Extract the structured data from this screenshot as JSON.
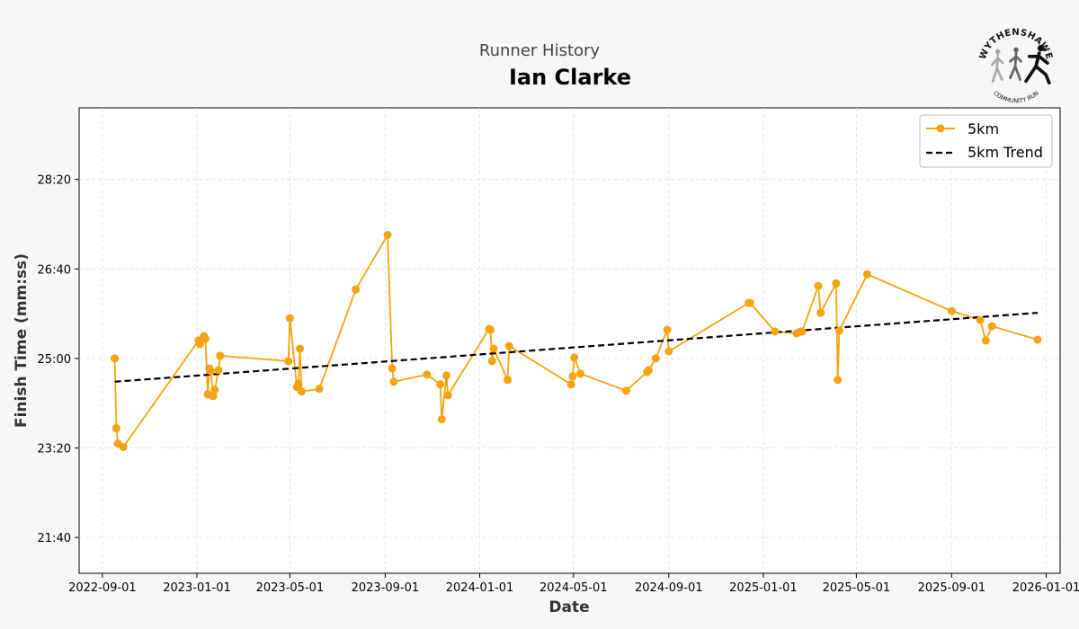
{
  "page": {
    "subtitle": "Runner History",
    "title": "Ian Clarke"
  },
  "logo": {
    "top_text": "WYTHENSHAWE",
    "bottom_text": "COMMUNITY RUN"
  },
  "colors": {
    "series": "#f5a30f",
    "trend": "#000000",
    "background": "#f7f7f7",
    "plot_background": "#ffffff",
    "grid": "#dddddd"
  },
  "chart_data": {
    "type": "line",
    "title": "Ian Clarke",
    "subtitle": "Runner History",
    "xlabel": "Date",
    "ylabel": "Finish Time (mm:ss)",
    "x_type": "date",
    "y_unit": "seconds",
    "xlim": [
      "2022-08-02",
      "2026-01-19"
    ],
    "ylim": [
      1260,
      1780
    ],
    "x_ticks": [
      "2022-09-01",
      "2023-01-01",
      "2023-05-01",
      "2023-09-01",
      "2024-01-01",
      "2024-05-01",
      "2024-09-01",
      "2025-01-01",
      "2025-05-01",
      "2025-09-01",
      "2026-01-01"
    ],
    "y_ticks": [
      1300,
      1400,
      1500,
      1600,
      1700
    ],
    "y_tick_labels": [
      "21:40",
      "23:20",
      "25:00",
      "26:40",
      "28:20"
    ],
    "grid": true,
    "legend": "top-right",
    "series": [
      {
        "name": "5km",
        "style": "line-marker",
        "x": [
          "2022-09-17",
          "2022-09-19",
          "2022-09-21",
          "2022-09-28",
          "2023-01-03",
          "2023-01-05",
          "2023-01-10",
          "2023-01-12",
          "2023-01-15",
          "2023-01-17",
          "2023-01-19",
          "2023-01-22",
          "2023-01-24",
          "2023-01-29",
          "2023-01-31",
          "2023-04-29",
          "2023-05-01",
          "2023-05-10",
          "2023-05-12",
          "2023-05-14",
          "2023-05-16",
          "2023-06-08",
          "2023-07-25",
          "2023-09-04",
          "2023-09-10",
          "2023-09-12",
          "2023-10-25",
          "2023-11-11",
          "2023-11-13",
          "2023-11-19",
          "2023-11-21",
          "2024-01-13",
          "2024-01-15",
          "2024-01-17",
          "2024-01-19",
          "2024-02-06",
          "2024-02-08",
          "2024-04-28",
          "2024-04-30",
          "2024-05-02",
          "2024-05-10",
          "2024-07-08",
          "2024-08-04",
          "2024-08-06",
          "2024-08-15",
          "2024-08-30",
          "2024-09-01",
          "2024-12-13",
          "2024-12-15",
          "2025-01-16",
          "2025-02-13",
          "2025-02-18",
          "2025-02-20",
          "2025-03-13",
          "2025-03-16",
          "2025-04-05",
          "2025-04-07",
          "2025-04-09",
          "2025-05-15",
          "2025-09-01",
          "2025-10-08",
          "2025-10-15",
          "2025-10-23",
          "2025-12-21"
        ],
        "y": [
          1500,
          1422,
          1405,
          1401,
          1520,
          1516,
          1525,
          1522,
          1460,
          1489,
          1486,
          1458,
          1465,
          1487,
          1503,
          1497,
          1545,
          1468,
          1472,
          1511,
          1463,
          1466,
          1577,
          1638,
          1489,
          1474,
          1482,
          1471,
          1432,
          1481,
          1459,
          1533,
          1532,
          1497,
          1511,
          1476,
          1514,
          1471,
          1480,
          1501,
          1483,
          1464,
          1485,
          1487,
          1500,
          1532,
          1508,
          1562,
          1562,
          1530,
          1528,
          1530,
          1530,
          1581,
          1551,
          1584,
          1476,
          1531,
          1594,
          1553,
          1543,
          1520,
          1536,
          1521
        ]
      },
      {
        "name": "5km Trend",
        "style": "dashed",
        "x": [
          "2022-09-17",
          "2025-12-21"
        ],
        "y": [
          1474,
          1551
        ]
      }
    ]
  }
}
